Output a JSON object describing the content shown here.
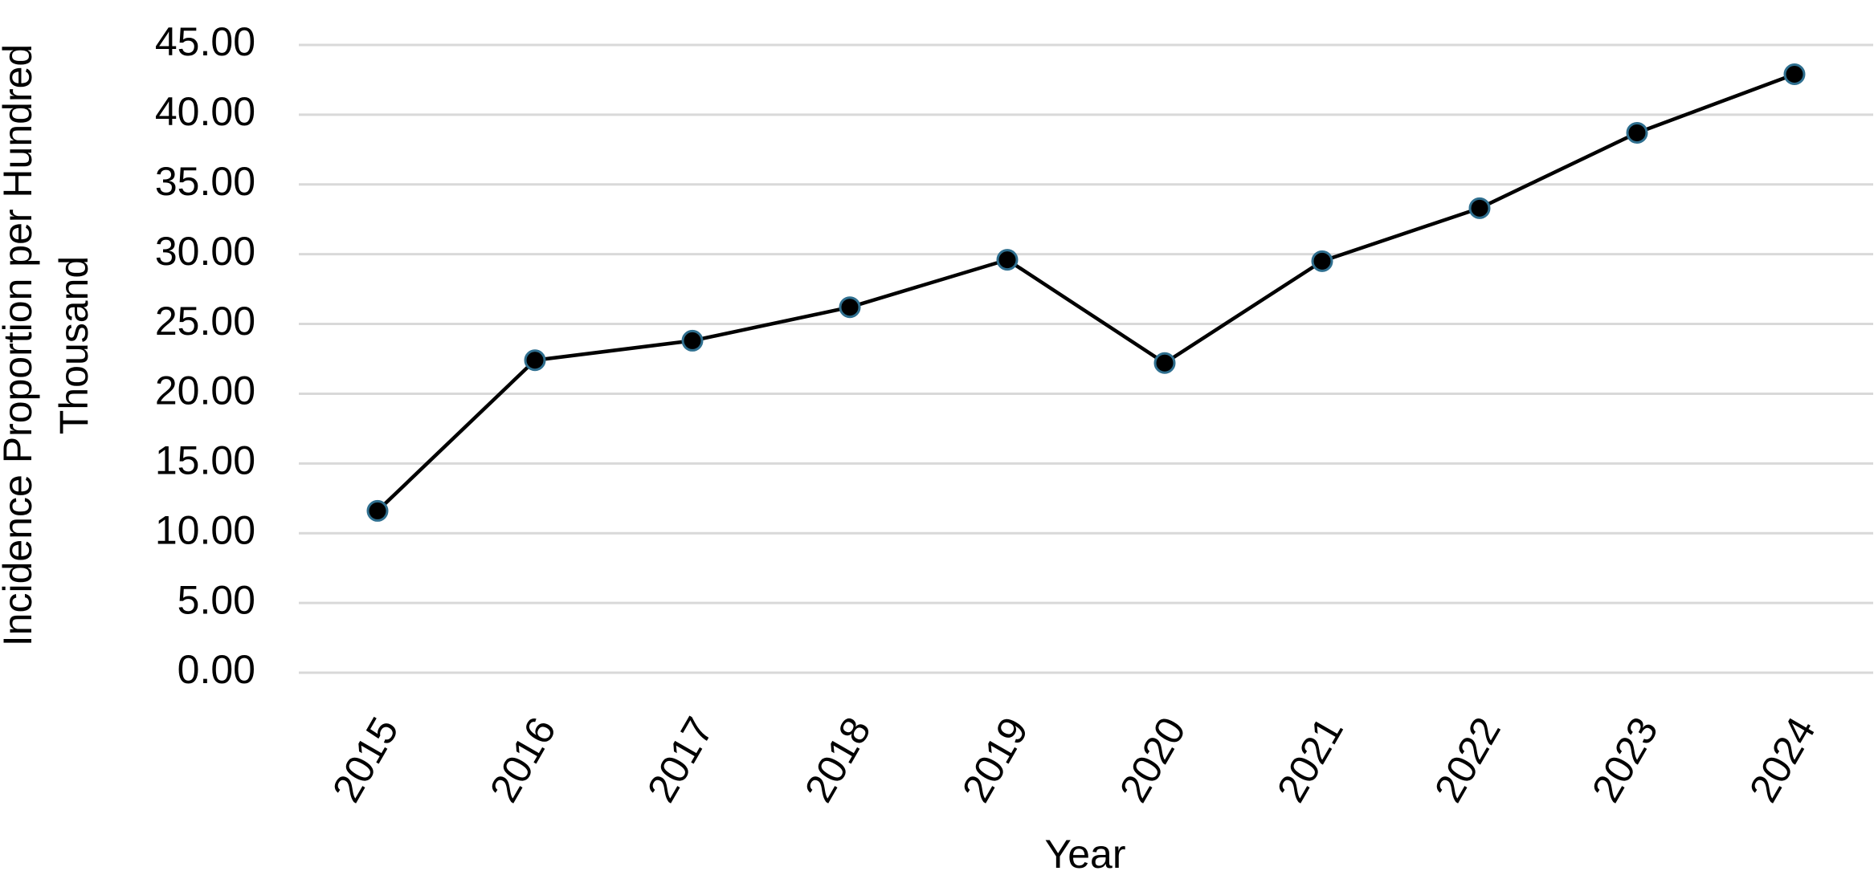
{
  "chart_data": {
    "type": "line",
    "x_label": "Year",
    "y_label": "Incidence Proportion per Hundred Thousand",
    "categories": [
      "2015",
      "2016",
      "2017",
      "2018",
      "2019",
      "2020",
      "2021",
      "2022",
      "2023",
      "2024"
    ],
    "values": [
      11.6,
      22.4,
      23.8,
      26.2,
      29.6,
      22.2,
      29.5,
      33.3,
      38.7,
      42.9
    ],
    "color": "#000000",
    "marker_color": "#000000",
    "marker_edge_color": "#2f6f8f",
    "ylim": [
      0,
      45
    ],
    "yticks": [
      {
        "value": 0,
        "label": "0.00"
      },
      {
        "value": 5,
        "label": "5.00"
      },
      {
        "value": 10,
        "label": "10.00"
      },
      {
        "value": 15,
        "label": "15.00"
      },
      {
        "value": 20,
        "label": "20.00"
      },
      {
        "value": 25,
        "label": "25.00"
      },
      {
        "value": 30,
        "label": "30.00"
      },
      {
        "value": 35,
        "label": "35.00"
      },
      {
        "value": 40,
        "label": "40.00"
      },
      {
        "value": 45,
        "label": "45.00"
      }
    ],
    "grid": true
  }
}
